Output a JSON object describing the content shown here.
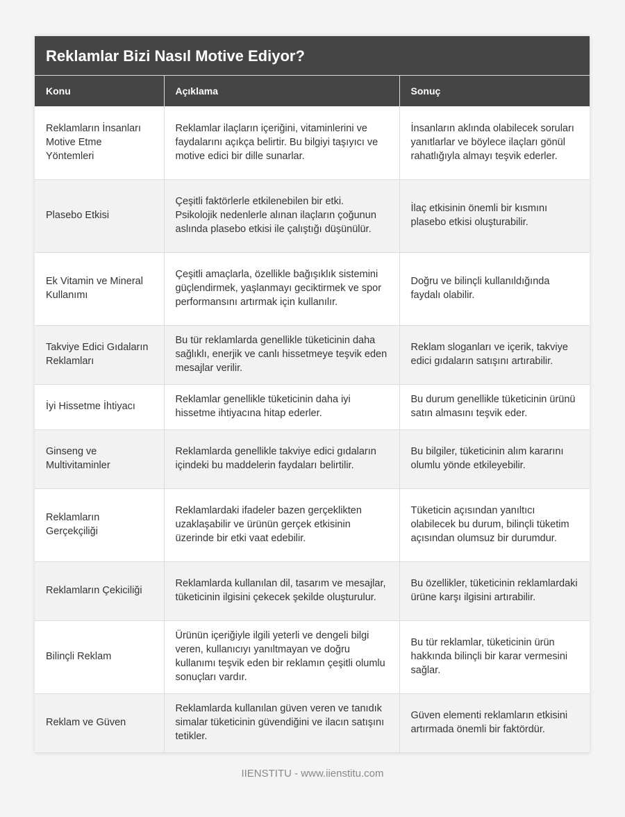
{
  "title": "Reklamlar Bizi Nasıl Motive Ediyor?",
  "headers": [
    "Konu",
    "Açıklama",
    "Sonuç"
  ],
  "rows": [
    [
      "Reklamların İnsanları Motive Etme Yöntemleri",
      "Reklamlar ilaçların içeriğini, vitaminlerini ve faydalarını açıkça belirtir. Bu bilgiyi taşıyıcı ve motive edici bir dille sunarlar.",
      "İnsanların aklında olabilecek soruları yanıtlarlar ve böylece ilaçları gönül rahatlığıyla almayı teşvik ederler."
    ],
    [
      "Plasebo Etkisi",
      "Çeşitli faktörlerle etkilenebilen bir etki. Psikolojik nedenlerle alınan ilaçların çoğunun aslında plasebo etkisi ile çalıştığı düşünülür.",
      "İlaç etkisinin önemli bir kısmını plasebo etkisi oluşturabilir."
    ],
    [
      "Ek Vitamin ve Mineral Kullanımı",
      "Çeşitli amaçlarla, özellikle bağışıklık sistemini güçlendirmek, yaşlanmayı geciktirmek ve spor performansını artırmak için kullanılır.",
      "Doğru ve bilinçli kullanıldığında faydalı olabilir."
    ],
    [
      "Takviye Edici Gıdaların Reklamları",
      "Bu tür reklamlarda genellikle tüketicinin daha sağlıklı, enerjik ve canlı hissetmeye teşvik eden mesajlar verilir.",
      "Reklam sloganları ve içerik, takviye edici gıdaların satışını artırabilir."
    ],
    [
      "İyi Hissetme İhtiyacı",
      "Reklamlar genellikle tüketicinin daha iyi hissetme ihtiyacına hitap ederler.",
      "Bu durum genellikle tüketicinin ürünü satın almasını teşvik eder."
    ],
    [
      "Ginseng ve Multivitaminler",
      "Reklamlarda genellikle takviye edici gıdaların içindeki bu maddelerin faydaları belirtilir.",
      "Bu bilgiler, tüketicinin alım kararını olumlu yönde etkileyebilir."
    ],
    [
      "Reklamların Gerçekçiliği",
      "Reklamlardaki ifadeler bazen gerçeklikten uzaklaşabilir ve ürünün gerçek etkisinin üzerinde bir etki vaat edebilir.",
      "Tüketicin açısından yanıltıcı olabilecek bu durum, bilinçli tüketim açısından olumsuz bir durumdur."
    ],
    [
      "Reklamların Çekiciliği",
      "Reklamlarda kullanılan dil, tasarım ve mesajlar, tüketicinin ilgisini çekecek şekilde oluşturulur.",
      "Bu özellikler, tüketicinin reklamlardaki ürüne karşı ilgisini artırabilir."
    ],
    [
      "Bilinçli Reklam",
      "Ürünün içeriğiyle ilgili yeterli ve dengeli bilgi veren, kullanıcıyı yanıltmayan ve doğru kullanımı teşvik eden bir reklamın çeşitli olumlu sonuçları vardır.",
      "Bu tür reklamlar, tüketicinin ürün hakkında bilinçli bir karar vermesini sağlar."
    ],
    [
      "Reklam ve Güven",
      "Reklamlarda kullanılan güven veren ve tanıdık simalar tüketicinin güvendiğini ve ilacın satışını tetikler.",
      "Güven elementi reklamların etkisini artırmada önemli bir faktördür."
    ]
  ],
  "footer": "IIENSTITU - www.iienstitu.com"
}
